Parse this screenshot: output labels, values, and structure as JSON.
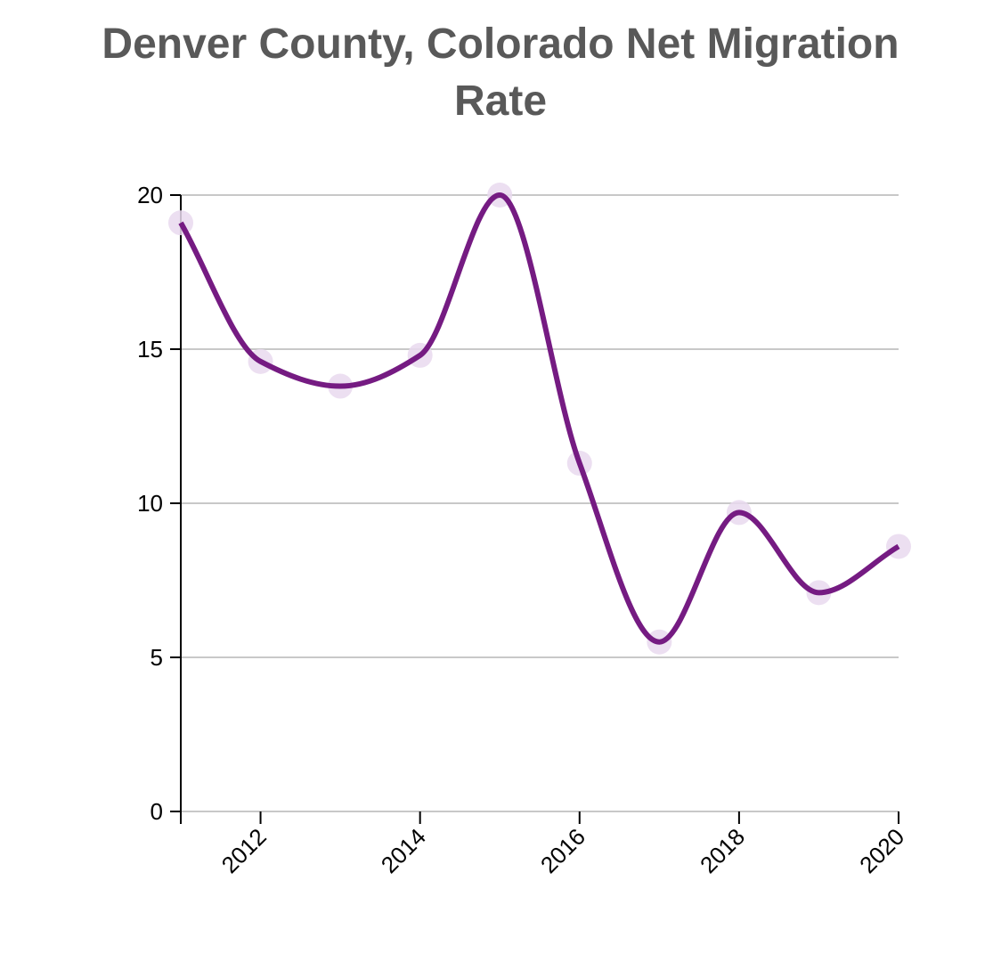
{
  "chart_data": {
    "type": "line",
    "title_line1": "Denver County, Colorado Net Migration",
    "title_line2": "Rate",
    "xlabel": "",
    "ylabel": "",
    "x": [
      2011,
      2012,
      2013,
      2014,
      2015,
      2016,
      2017,
      2018,
      2019,
      2020
    ],
    "series": [
      {
        "name": "Net Migration Rate",
        "values": [
          19.1,
          14.6,
          13.8,
          14.8,
          20.0,
          11.3,
          5.5,
          9.7,
          7.1,
          8.6
        ]
      }
    ],
    "xlim": [
      2011,
      2020
    ],
    "ylim": [
      0,
      20
    ],
    "x_ticks": [
      2012,
      2014,
      2016,
      2018,
      2020
    ],
    "y_ticks": [
      0,
      5,
      10,
      15,
      20
    ],
    "grid": true,
    "colors": {
      "line": "#751b82",
      "point": "#e9d9ef",
      "grid": "#c8c8c8",
      "axis": "#000000",
      "title": "#595959"
    }
  }
}
